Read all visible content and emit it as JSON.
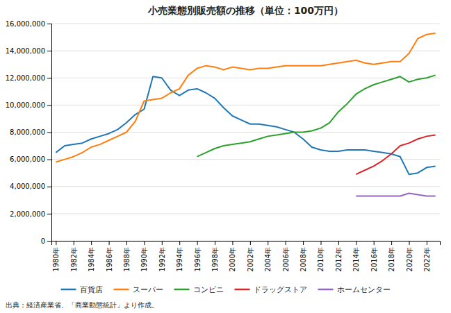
{
  "chart_data": {
    "type": "line",
    "title": "小売業態別販売額の推移（単位：100万円）",
    "annotations": [
      "出典：経済産業省、「商業動態統計」より作成。"
    ],
    "x": [
      1980,
      1981,
      1982,
      1983,
      1984,
      1985,
      1986,
      1987,
      1988,
      1989,
      1990,
      1991,
      1992,
      1993,
      1994,
      1995,
      1996,
      1997,
      1998,
      1999,
      2000,
      2001,
      2002,
      2003,
      2004,
      2005,
      2006,
      2007,
      2008,
      2009,
      2010,
      2011,
      2012,
      2013,
      2014,
      2015,
      2016,
      2017,
      2018,
      2019,
      2020,
      2021,
      2022,
      2023
    ],
    "series": [
      {
        "name": "百貨店",
        "values": [
          6500000,
          7000000,
          7100000,
          7200000,
          7500000,
          7700000,
          7900000,
          8200000,
          8700000,
          9300000,
          9700000,
          12100000,
          12000000,
          11100000,
          10700000,
          11100000,
          11200000,
          10900000,
          10500000,
          9800000,
          9200000,
          8900000,
          8600000,
          8600000,
          8500000,
          8400000,
          8200000,
          8000000,
          7500000,
          6900000,
          6700000,
          6600000,
          6600000,
          6700000,
          6700000,
          6700000,
          6600000,
          6500000,
          6400000,
          6200000,
          4900000,
          5000000,
          5400000,
          5500000
        ]
      },
      {
        "name": "スーパー",
        "values": [
          5800000,
          6000000,
          6200000,
          6500000,
          6900000,
          7100000,
          7400000,
          7700000,
          8000000,
          8800000,
          10300000,
          10400000,
          10500000,
          10900000,
          11200000,
          12200000,
          12700000,
          12900000,
          12800000,
          12600000,
          12800000,
          12700000,
          12600000,
          12700000,
          12700000,
          12800000,
          12900000,
          12900000,
          12900000,
          12900000,
          12900000,
          13000000,
          13100000,
          13200000,
          13300000,
          13100000,
          13000000,
          13100000,
          13200000,
          13200000,
          13800000,
          14900000,
          15200000,
          15300000
        ]
      },
      {
        "name": "コンビニ",
        "values": [
          null,
          null,
          null,
          null,
          null,
          null,
          null,
          null,
          null,
          null,
          null,
          null,
          null,
          null,
          null,
          null,
          6200000,
          6500000,
          6800000,
          7000000,
          7100000,
          7200000,
          7300000,
          7500000,
          7700000,
          7800000,
          7900000,
          8000000,
          8000000,
          8100000,
          8300000,
          8700000,
          9500000,
          10100000,
          10800000,
          11200000,
          11500000,
          11700000,
          11900000,
          12100000,
          11700000,
          11900000,
          12000000,
          12200000
        ]
      },
      {
        "name": "ドラッグストア",
        "values": [
          null,
          null,
          null,
          null,
          null,
          null,
          null,
          null,
          null,
          null,
          null,
          null,
          null,
          null,
          null,
          null,
          null,
          null,
          null,
          null,
          null,
          null,
          null,
          null,
          null,
          null,
          null,
          null,
          null,
          null,
          null,
          null,
          null,
          null,
          4900000,
          5200000,
          5500000,
          5900000,
          6400000,
          7000000,
          7200000,
          7500000,
          7700000,
          7800000
        ]
      },
      {
        "name": "ホームセンター",
        "values": [
          null,
          null,
          null,
          null,
          null,
          null,
          null,
          null,
          null,
          null,
          null,
          null,
          null,
          null,
          null,
          null,
          null,
          null,
          null,
          null,
          null,
          null,
          null,
          null,
          null,
          null,
          null,
          null,
          null,
          null,
          null,
          null,
          null,
          null,
          3300000,
          3300000,
          3300000,
          3300000,
          3300000,
          3300000,
          3500000,
          3400000,
          3300000,
          3300000
        ]
      }
    ],
    "xlim": [
      1979.5,
      2023.5
    ],
    "xticks": [
      {
        "value": 1980,
        "label": "1980年"
      },
      {
        "value": 1982,
        "label": "1982年"
      },
      {
        "value": 1984,
        "label": "1984年"
      },
      {
        "value": 1986,
        "label": "1986年"
      },
      {
        "value": 1988,
        "label": "1988年"
      },
      {
        "value": 1990,
        "label": "1990年"
      },
      {
        "value": 1992,
        "label": "1992年"
      },
      {
        "value": 1994,
        "label": "1994年"
      },
      {
        "value": 1996,
        "label": "1996年"
      },
      {
        "value": 1998,
        "label": "1998年"
      },
      {
        "value": 2000,
        "label": "2000年"
      },
      {
        "value": 2002,
        "label": "2002年"
      },
      {
        "value": 2004,
        "label": "2004年"
      },
      {
        "value": 2006,
        "label": "2006年"
      },
      {
        "value": 2008,
        "label": "2008年"
      },
      {
        "value": 2010,
        "label": "2010年"
      },
      {
        "value": 2012,
        "label": "2012年"
      },
      {
        "value": 2014,
        "label": "2014年"
      },
      {
        "value": 2016,
        "label": "2016年"
      },
      {
        "value": 2018,
        "label": "2018年"
      },
      {
        "value": 2020,
        "label": "2020年"
      },
      {
        "value": 2022,
        "label": "2022年"
      }
    ],
    "ylim": [
      0,
      16000000
    ],
    "yticks": [
      0,
      {
        "value": 2000000,
        "label": "2,000,000"
      },
      {
        "value": 4000000,
        "label": "4,000,000"
      },
      {
        "value": 6000000,
        "label": "6,000,000"
      },
      {
        "value": 8000000,
        "label": "8,000,000"
      },
      {
        "value": 10000000,
        "label": "10,000,000"
      },
      {
        "value": 12000000,
        "label": "12,000,000"
      },
      {
        "value": 14000000,
        "label": "14,000,000"
      },
      {
        "value": 16000000,
        "label": "16,000,000"
      }
    ],
    "grid": true,
    "legend": "bottom"
  }
}
